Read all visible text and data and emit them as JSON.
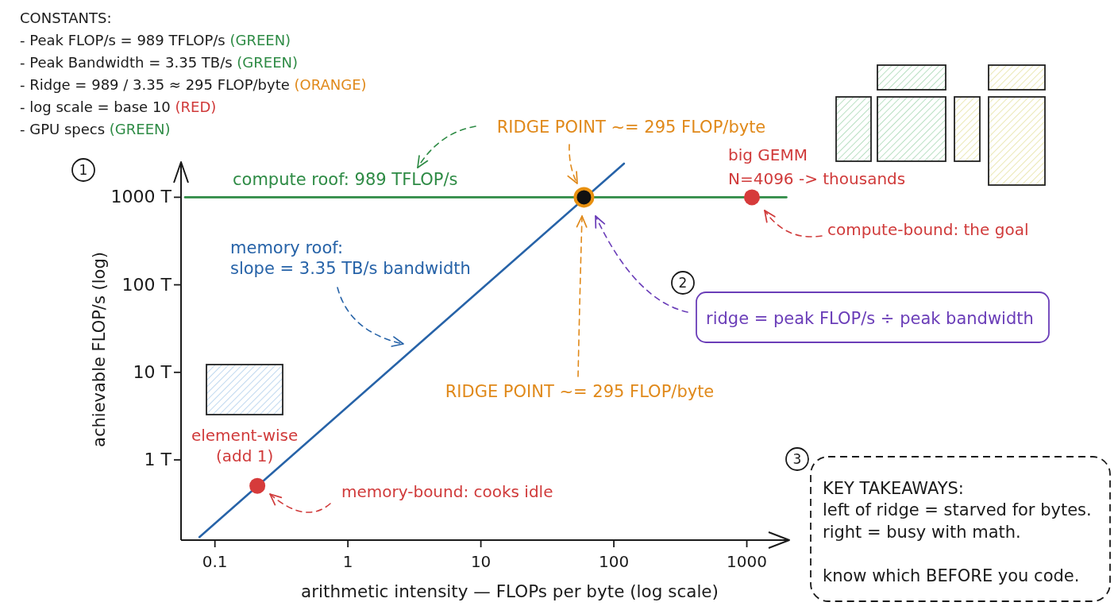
{
  "chart_data": {
    "type": "line",
    "xlabel": "arithmetic intensity — FLOPs per byte (log scale)",
    "ylabel": "achievable FLOP/s (log)",
    "log": "xy",
    "xlim": [
      0.056,
      2100
    ],
    "ylim": [
      0.12,
      2500
    ],
    "xticks": [
      0.1,
      1,
      10,
      100,
      1000
    ],
    "yticks": [
      {
        "value": 1,
        "label": "1 T"
      },
      {
        "value": 10,
        "label": "10 T"
      },
      {
        "value": 100,
        "label": "100 T"
      },
      {
        "value": 1000,
        "label": "1000 T"
      }
    ],
    "series": [
      {
        "name": "compute roof: 989 TFLOP/s",
        "color": "#2e8b45",
        "x": [
          0.06,
          2000
        ],
        "values": [
          989,
          989
        ]
      },
      {
        "name": "memory roof:\nslope = 3.35 TB/s bandwidth",
        "color": "#2763a8",
        "x": [
          0.077,
          120
        ],
        "values": [
          0.13,
          2400
        ]
      },
      {
        "type": "scatter",
        "marker": "circle",
        "color": "#d63b3b",
        "x": [
          0.21,
          1100
        ],
        "values": [
          0.5,
          989
        ]
      },
      {
        "type": "scatter",
        "marker": "circle",
        "color": "#111111",
        "x": [
          60
        ],
        "values": [
          989
        ]
      }
    ],
    "annotations": [
      "CONSTANTS:",
      "- Peak FLOP/s = 989 TFLOP/s (GREEN)",
      "- Peak Bandwidth = 3.35 TB/s (GREEN)",
      "- Ridge = 989 / 3.35 ≈ 295 FLOP/byte (ORANGE)",
      "- log scale = base 10 (RED)",
      "- GPU specs (GREEN)",
      "1",
      "2",
      "3",
      "RIDGE POINT ~= 295 FLOP/byte",
      "RIDGE POINT ~= 295 FLOP/byte",
      {
        "text": "big GEMM\nN=4096 -> thousands",
        "x": 1100,
        "y": 989
      },
      "compute-bound: the goal",
      {
        "text": "element-wise\n(add 1)",
        "x": 0.21,
        "y": 0.5
      },
      "memory-bound: cooks idle",
      "ridge = peak FLOP/s ÷ peak bandwidth",
      "KEY TAKEAWAYS:\nleft of ridge = starved for bytes.\nright = busy with math.\n\nknow which BEFORE you code."
    ]
  }
}
